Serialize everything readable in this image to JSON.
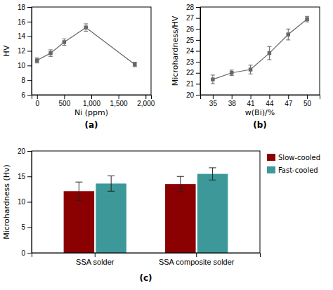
{
  "chart_data": [
    {
      "type": "line",
      "title": "(a)",
      "xlabel": "Ni (ppm)",
      "ylabel": "HV",
      "x": [
        0,
        250,
        500,
        900,
        1800
      ],
      "values": [
        10.7,
        11.7,
        13.2,
        15.2,
        10.15
      ],
      "errors": [
        0.35,
        0.45,
        0.45,
        0.5,
        0.3
      ],
      "color": "#666666",
      "marker": "square",
      "xlim": [
        -100,
        2100
      ],
      "xticks": [
        0,
        500,
        {
          "value": 1000,
          "label": "1,000"
        },
        {
          "value": 1500,
          "label": "1,500"
        },
        {
          "value": 2000,
          "label": "2,000"
        }
      ],
      "ylim": [
        6,
        18
      ],
      "yticks": [
        6,
        8,
        10,
        12,
        14,
        16,
        18
      ]
    },
    {
      "type": "line",
      "title": "(b)",
      "xlabel": "w(Bi)/%",
      "ylabel": "Microhardness/HV",
      "x": [
        35,
        38,
        41,
        44,
        47,
        50
      ],
      "values": [
        21.4,
        22.0,
        22.3,
        23.8,
        25.5,
        26.9
      ],
      "errors": [
        0.4,
        0.25,
        0.4,
        0.6,
        0.5,
        0.25
      ],
      "color": "#666666",
      "marker": "square",
      "xlim": [
        33,
        52
      ],
      "xticks": [
        35,
        38,
        41,
        44,
        47,
        50
      ],
      "ylim": [
        20,
        28
      ],
      "yticks": [
        20,
        21,
        22,
        23,
        24,
        25,
        26,
        27,
        28
      ]
    },
    {
      "type": "bar",
      "title": "(c)",
      "ylabel": "Microhardness (Hv)",
      "categories": [
        "SSA solder",
        "SSA composite solder"
      ],
      "series": [
        {
          "name": "Slow-cooled",
          "color": "#8B0000",
          "values": [
            12.1,
            13.5
          ],
          "errors": [
            1.8,
            1.5
          ]
        },
        {
          "name": "Fast-cooled",
          "color": "#3d9999",
          "values": [
            13.6,
            15.5
          ],
          "errors": [
            1.5,
            1.2
          ]
        }
      ],
      "ylim": [
        0,
        20
      ],
      "yticks": [
        0,
        5,
        10,
        15,
        20
      ],
      "legend": "upper right"
    }
  ]
}
